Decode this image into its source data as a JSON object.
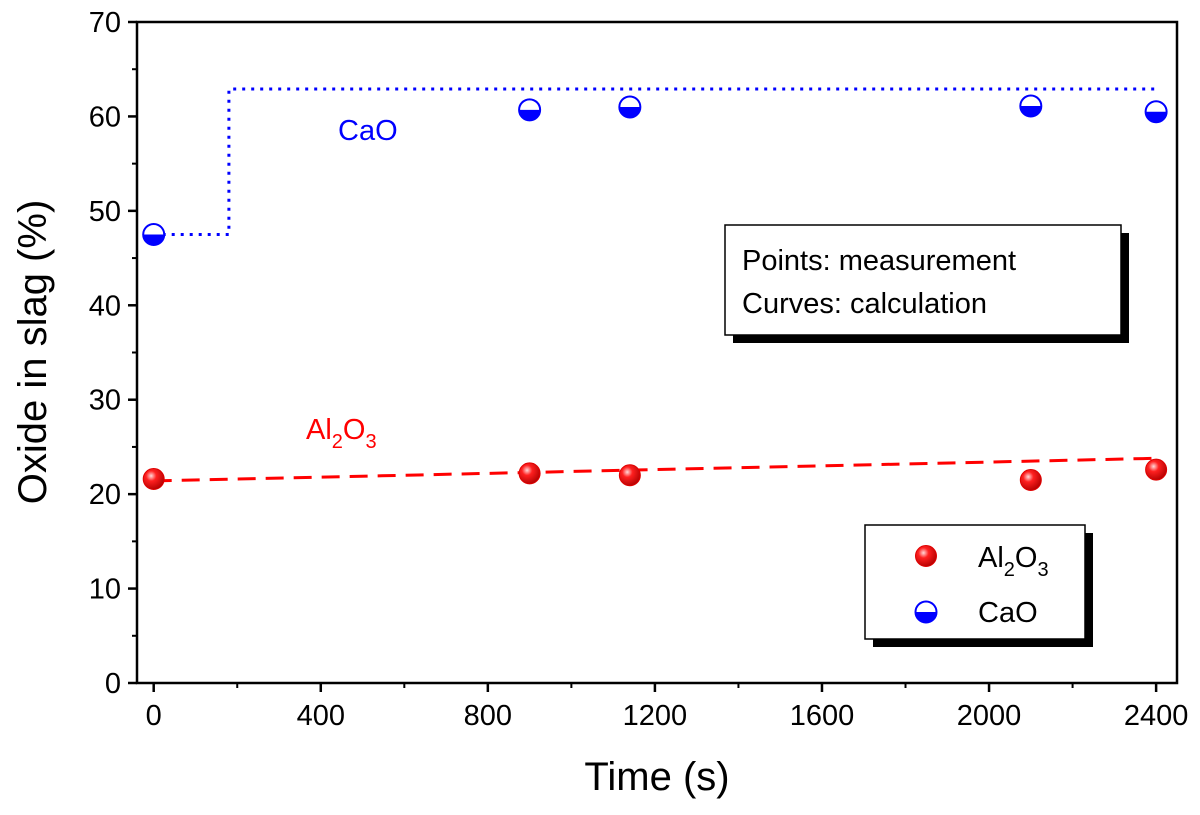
{
  "chart_data": {
    "type": "scatter",
    "xlabel": "Time (s)",
    "ylabel": "Oxide in slag (%)",
    "xlim": [
      -40,
      2450
    ],
    "ylim": [
      0,
      70
    ],
    "x_ticks": [
      0,
      400,
      800,
      1200,
      1600,
      2000,
      2400
    ],
    "y_ticks": [
      0,
      10,
      20,
      30,
      40,
      50,
      60,
      70
    ],
    "grid": false,
    "legend_position": "bottom-right",
    "series": [
      {
        "name": "Al2O3",
        "color": "#ff0000",
        "marker": "sphere",
        "points": [
          {
            "x": 0,
            "y": 21.6
          },
          {
            "x": 900,
            "y": 22.2
          },
          {
            "x": 1140,
            "y": 22.0
          },
          {
            "x": 2100,
            "y": 21.5
          },
          {
            "x": 2400,
            "y": 22.6
          }
        ]
      },
      {
        "name": "CaO",
        "color": "#0000ff",
        "marker": "half-filled circle",
        "points": [
          {
            "x": 0,
            "y": 47.5
          },
          {
            "x": 900,
            "y": 60.7
          },
          {
            "x": 1140,
            "y": 61.0
          },
          {
            "x": 2100,
            "y": 61.1
          },
          {
            "x": 2400,
            "y": 60.5
          }
        ]
      }
    ],
    "curves": [
      {
        "label": "CaO",
        "color": "#0000ff",
        "style": "dotted",
        "points": [
          [
            0,
            47.5
          ],
          [
            180,
            47.5
          ],
          [
            180,
            62.9
          ],
          [
            2400,
            62.9
          ]
        ]
      },
      {
        "label": "Al2O3",
        "color": "#ff0000",
        "style": "dashed",
        "points": [
          [
            0,
            21.4
          ],
          [
            2400,
            23.8
          ]
        ]
      }
    ],
    "annotations": {
      "cao_label": "CaO",
      "al2o3_label": {
        "base": "Al",
        "sub1": "2",
        "mid": "O",
        "sub2": "3"
      },
      "info_box": [
        "Points: measurement",
        "Curves: calculation"
      ]
    },
    "legend": {
      "al2o3": {
        "base": "Al",
        "sub1": "2",
        "mid": "O",
        "sub2": "3"
      },
      "cao": "CaO"
    }
  }
}
